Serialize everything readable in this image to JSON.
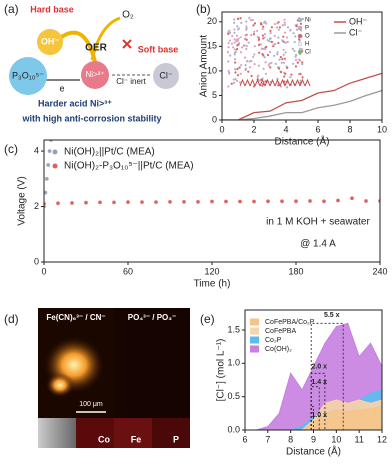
{
  "panel_labels": [
    "(a)",
    "(b)",
    "(c)",
    "(d)",
    "(e)"
  ],
  "diagram": {
    "hard_base": "Hard base",
    "oh": "OH⁻",
    "o2": "O₂",
    "oer": "OER",
    "soft_base": "Soft base",
    "p3o10": "P₃O₁₀⁵⁻",
    "ni": "Ni>³⁺",
    "cl_inert": "Cl⁻ inert",
    "cl": "Cl⁻",
    "e": "e",
    "harder_acid": "Harder acid Ni>³⁺",
    "stability": "with high anti-corrosion stability"
  },
  "images": {
    "titles": [
      "Fe(CN)₆³⁻ / CN⁻",
      "PO₄³⁻ / PO₃⁻"
    ],
    "scale_bar": "100 μm",
    "channels": [
      "Co",
      "Fe",
      "P"
    ]
  },
  "chart_data": [
    {
      "type": "line",
      "x_label": "Distance (Å)",
      "y_label": "Anion Amount",
      "x": [
        0,
        1,
        2,
        3,
        4,
        5,
        6,
        7,
        8,
        9,
        10
      ],
      "series": [
        {
          "name": "OH⁻",
          "color": "#c0504d",
          "values": [
            0,
            0,
            1.5,
            1.8,
            3.5,
            4,
            5.5,
            6,
            7.5,
            8.5,
            9.5
          ]
        },
        {
          "name": "Cl⁻",
          "color": "#9a9a9a",
          "values": [
            0,
            0,
            0.3,
            0.8,
            1.5,
            1.5,
            2.5,
            3,
            3.8,
            5,
            6
          ]
        }
      ],
      "xlim": [
        0,
        10
      ],
      "xticks": [
        0,
        2,
        4,
        6,
        8,
        10
      ],
      "ylim": [
        0,
        22
      ],
      "yticks": [
        0,
        5,
        10,
        15,
        20
      ],
      "legend": "upper right",
      "inset_legend": [
        "Ni",
        "P",
        "O",
        "H",
        "Cl"
      ]
    },
    {
      "type": "scatter",
      "x_label": "Time (h)",
      "y_label": "Voltage (V)",
      "series": [
        {
          "name": "Ni(OH)₂||Pt/C (MEA)",
          "color": "#9aa0b8",
          "x": [
            0,
            1,
            2,
            3,
            4,
            5
          ],
          "values": [
            2.0,
            2.5,
            3.0,
            3.5,
            4.0,
            4.4
          ]
        },
        {
          "name": "Ni(OH)₂-P₃O₁₀⁵⁻||Pt/C (MEA)",
          "color": "#e06060",
          "x": [
            0,
            10,
            20,
            30,
            40,
            50,
            60,
            70,
            80,
            90,
            100,
            110,
            120,
            130,
            140,
            150,
            160,
            170,
            180,
            190,
            200,
            210,
            220,
            230,
            240
          ],
          "values": [
            2.1,
            2.12,
            2.13,
            2.14,
            2.15,
            2.15,
            2.16,
            2.16,
            2.16,
            2.17,
            2.17,
            2.17,
            2.18,
            2.18,
            2.18,
            2.18,
            2.19,
            2.19,
            2.19,
            2.2,
            2.19,
            2.22,
            2.3,
            2.2,
            2.2
          ]
        }
      ],
      "xlim": [
        0,
        240
      ],
      "xticks": [
        0,
        60,
        120,
        180,
        240
      ],
      "ylim": [
        0,
        4.4
      ],
      "yticks": [
        0,
        2,
        4
      ],
      "legend": "upper left",
      "annotations": [
        "in 1 M KOH + seawater",
        "@ 1.4 A"
      ]
    },
    {
      "type": "area",
      "x_label": "Distance (Å)",
      "y_label": "[Cl⁻] (mol L⁻¹)",
      "x": [
        6,
        6.5,
        7,
        7.5,
        8,
        8.5,
        9,
        9.5,
        10,
        10.5,
        11,
        11.5,
        12
      ],
      "series": [
        {
          "name": "CoFePBA/Co₂P",
          "color": "#f6c48a",
          "values": [
            0,
            0,
            0,
            0,
            0,
            0,
            0.1,
            0.25,
            0.3,
            0.28,
            0.3,
            0.32,
            0.35
          ]
        },
        {
          "name": "CoFePBA",
          "color": "#fbd3a8",
          "values": [
            0,
            0,
            0,
            0,
            0,
            0,
            0.15,
            0.4,
            0.45,
            0.4,
            0.45,
            0.4,
            0.45
          ]
        },
        {
          "name": "Co₂P",
          "color": "#5bbcef",
          "values": [
            0,
            0,
            0,
            0,
            0,
            0.05,
            0.2,
            0.3,
            0.35,
            0.3,
            0.45,
            0.55,
            0.6
          ]
        },
        {
          "name": "Co(OH)₂",
          "color": "#c77fe0",
          "values": [
            0,
            0,
            0.05,
            0.25,
            0.85,
            0.6,
            0.95,
            1.3,
            1.55,
            1.6,
            1.1,
            1.3,
            0.95
          ]
        }
      ],
      "xlim": [
        6,
        12
      ],
      "xticks": [
        6,
        7,
        8,
        9,
        10,
        11,
        12
      ],
      "ylim": [
        0,
        1.8
      ],
      "yticks": [
        {
          "value": 0,
          "label": "0.0"
        },
        {
          "value": 0.5,
          "label": "0.5"
        },
        {
          "value": 1,
          "label": "1.0"
        },
        {
          "value": 1.5,
          "label": "1.5"
        }
      ],
      "legend": "upper left",
      "annotations": [
        "5.5 x",
        "2.0 x",
        "1.4 x",
        "1.0 x"
      ]
    }
  ]
}
